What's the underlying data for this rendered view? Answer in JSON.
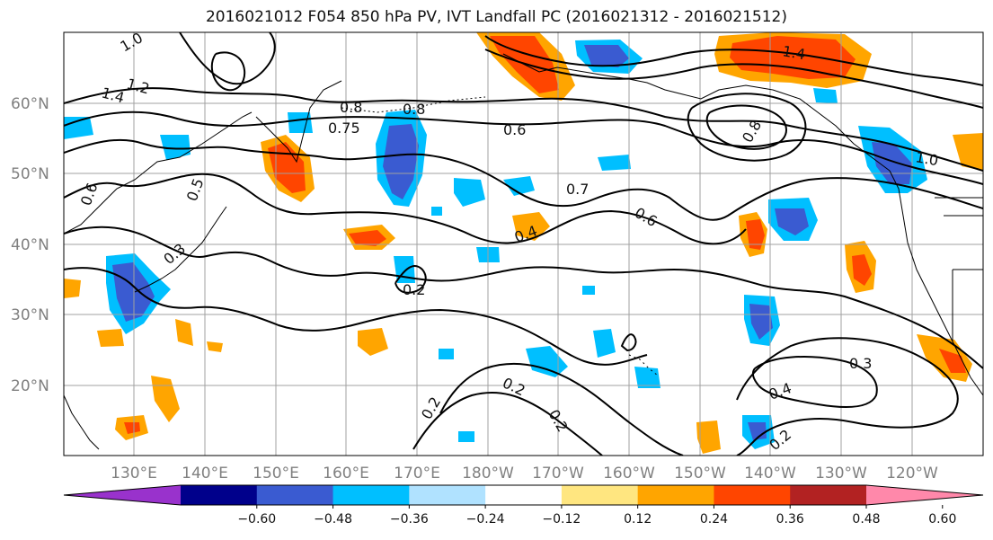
{
  "title": "2016021012 F054 850 hPa PV, IVT Landfall PC (2016021312 - 2016021512)",
  "lon_labels": [
    "130°E",
    "140°E",
    "150°E",
    "160°E",
    "170°E",
    "180°W",
    "170°W",
    "160°W",
    "150°W",
    "140°W",
    "130°W",
    "120°W"
  ],
  "lat_labels": [
    "60°N",
    "50°N",
    "40°N",
    "30°N",
    "20°N"
  ],
  "colorbar": {
    "ticks": [
      "−0.60",
      "−0.48",
      "−0.36",
      "−0.24",
      "−0.12",
      "0.12",
      "0.24",
      "0.36",
      "0.48",
      "0.60"
    ],
    "colors": [
      "#9932cc",
      "#00008b",
      "#3a5bd1",
      "#00bfff",
      "#b0e2ff",
      "#ffffff",
      "#ffe680",
      "#ffa500",
      "#ff4500",
      "#b22222",
      "#ff88aa"
    ]
  },
  "contour_labels": [
    "1.0",
    "1.2",
    "1.4",
    "0.8",
    "0.75",
    "0.6",
    "0.7",
    "0.8",
    "0.6",
    "0.4",
    "0.3",
    "0.2",
    "0.2",
    "0.2",
    "0.2",
    "0.3",
    "0.4",
    "0.2",
    "1.4",
    "1.0",
    "0.8",
    "0.6",
    "0.5"
  ]
}
